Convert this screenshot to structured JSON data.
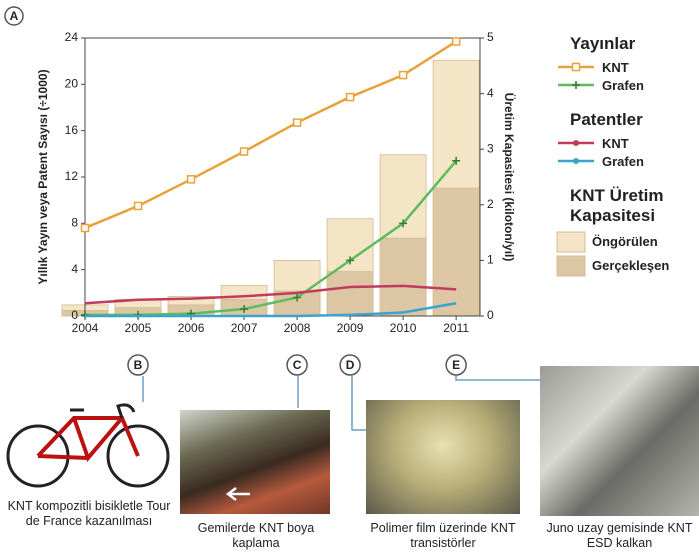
{
  "chart_data": {
    "type": "combo",
    "panel_label": "A",
    "y_label": "Yıllık Yayın veya Patent Sayısı (÷1000)",
    "y2_label": "Üretim Kapasitesi (kiloton/yıl)",
    "x": [
      2004,
      2005,
      2006,
      2007,
      2008,
      2009,
      2010,
      2011
    ],
    "xlim": [
      2004,
      2011.45
    ],
    "xticks": [
      2004,
      2005,
      2006,
      2007,
      2008,
      2009,
      2010,
      2011
    ],
    "ylim": [
      0,
      24
    ],
    "yticks": [
      0,
      4,
      8,
      12,
      16,
      20,
      24
    ],
    "y2lim": [
      0,
      5
    ],
    "y2ticks": [
      0,
      1,
      2,
      3,
      4,
      5
    ],
    "series_groups": [
      {
        "name": "Yayınlar",
        "series": [
          {
            "name": "KNT",
            "type": "line",
            "marker": "square",
            "color": "#e9a13b",
            "values": [
              7.6,
              9.5,
              11.8,
              14.2,
              16.7,
              18.9,
              20.8,
              23.7
            ]
          },
          {
            "name": "Grafen",
            "type": "line",
            "marker": "plus",
            "color": "#5cbb5c",
            "values": [
              0.1,
              0.1,
              0.2,
              0.6,
              1.6,
              4.8,
              8.0,
              13.4
            ]
          }
        ]
      },
      {
        "name": "Patentler",
        "series": [
          {
            "name": "KNT",
            "type": "line",
            "marker": "none",
            "color": "#c23a5e",
            "values": [
              1.1,
              1.4,
              1.5,
              1.7,
              2.0,
              2.5,
              2.6,
              2.3
            ]
          },
          {
            "name": "Grafen",
            "type": "line",
            "marker": "none",
            "color": "#3ba3cc",
            "values": [
              0.0,
              0.0,
              0.0,
              0.0,
              0.0,
              0.1,
              0.3,
              1.1
            ]
          }
        ]
      },
      {
        "name": "KNT Üretim Kapasitesi",
        "series": [
          {
            "name": "Öngörülen",
            "type": "bar",
            "axis": "y2",
            "color": "#f4e5c6",
            "values": [
              0.2,
              0.3,
              0.35,
              0.55,
              1.0,
              1.75,
              2.9,
              4.6
            ]
          },
          {
            "name": "Gerçekleşen",
            "type": "bar",
            "axis": "y2",
            "color": "#dcc6a4",
            "values": [
              0.1,
              0.15,
              0.2,
              0.3,
              0.45,
              0.8,
              1.4,
              2.3
            ]
          }
        ]
      }
    ],
    "events": [
      {
        "label": "B",
        "x": 2005,
        "caption": "KNT kompozitli bisikletle Tour de France kazanılması"
      },
      {
        "label": "C",
        "x": 2008,
        "caption": "Gemilerde KNT boya kaplama"
      },
      {
        "label": "D",
        "x": 2009,
        "caption": "Polimer film üzerinde KNT transistörler"
      },
      {
        "label": "E",
        "x": 2011,
        "caption": "Juno uzay gemisinde KNT ESD kalkan"
      }
    ]
  }
}
